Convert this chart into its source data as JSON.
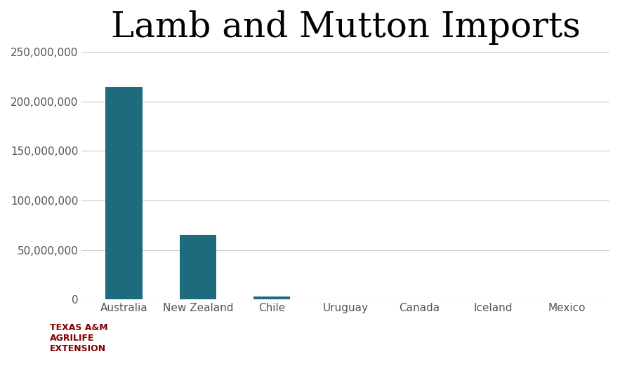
{
  "title": "Lamb and Mutton Imports",
  "categories": [
    "Australia",
    "New Zealand",
    "Chile",
    "Uruguay",
    "Canada",
    "Iceland",
    "Mexico"
  ],
  "values": [
    215000000,
    65000000,
    3000000,
    400000,
    200000,
    100000,
    50000
  ],
  "bar_color": "#1e6b7e",
  "ylim": [
    0,
    250000000
  ],
  "yticks": [
    0,
    50000000,
    100000000,
    150000000,
    200000000,
    250000000
  ],
  "ytick_labels": [
    "0",
    "50,000,000",
    "100,000,000",
    "150,000,000",
    "200,000,000",
    "250,000,000"
  ],
  "background_color": "#ffffff",
  "grid_color": "#cccccc",
  "title_fontsize": 36,
  "tick_fontsize": 11,
  "title_font": "serif"
}
